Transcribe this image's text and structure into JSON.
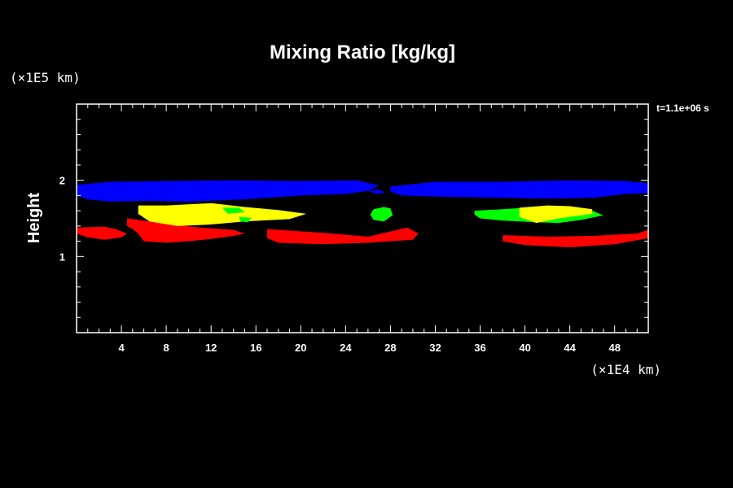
{
  "chart_data": {
    "type": "area",
    "title": "Mixing Ratio [kg/kg]",
    "xlabel": "",
    "ylabel": "Height",
    "x_unit": "(×1E4 km)",
    "y_unit": "(×1E5 km)",
    "time_label": "t=1.1e+06 s",
    "xlim": [
      0,
      51
    ],
    "ylim": [
      0,
      3
    ],
    "x_ticks": [
      4,
      8,
      12,
      16,
      20,
      24,
      28,
      32,
      36,
      40,
      44,
      48
    ],
    "y_ticks": [
      1,
      2
    ],
    "grid": false,
    "colors": {
      "background": "#000000",
      "axes": "#ffffff",
      "blue": "#0000ff",
      "yellow": "#ffff00",
      "green": "#00ff00",
      "red": "#ff0000"
    },
    "regions": [
      {
        "color": "blue",
        "polygon": [
          [
            0,
            1.94
          ],
          [
            3,
            1.98
          ],
          [
            8,
            1.99
          ],
          [
            14,
            2.0
          ],
          [
            20,
            1.99
          ],
          [
            25,
            2.0
          ],
          [
            27,
            1.93
          ],
          [
            26,
            1.86
          ],
          [
            24,
            1.82
          ],
          [
            20,
            1.8
          ],
          [
            15,
            1.75
          ],
          [
            10,
            1.72
          ],
          [
            6,
            1.73
          ],
          [
            3,
            1.72
          ],
          [
            1,
            1.75
          ],
          [
            0,
            1.8
          ]
        ]
      },
      {
        "color": "blue",
        "polygon": [
          [
            26,
            1.86
          ],
          [
            27,
            1.88
          ],
          [
            27.5,
            1.84
          ],
          [
            26.8,
            1.82
          ]
        ]
      },
      {
        "color": "blue",
        "polygon": [
          [
            28,
            1.92
          ],
          [
            32,
            1.98
          ],
          [
            38,
            1.98
          ],
          [
            44,
            2.0
          ],
          [
            49,
            1.99
          ],
          [
            51,
            1.96
          ],
          [
            51,
            1.83
          ],
          [
            49,
            1.82
          ],
          [
            46,
            1.77
          ],
          [
            42,
            1.76
          ],
          [
            38,
            1.77
          ],
          [
            34,
            1.78
          ],
          [
            31,
            1.79
          ],
          [
            29,
            1.8
          ],
          [
            28,
            1.85
          ]
        ]
      },
      {
        "color": "red",
        "polygon": [
          [
            0,
            1.38
          ],
          [
            2.5,
            1.39
          ],
          [
            3.5,
            1.36
          ],
          [
            4.5,
            1.3
          ],
          [
            4,
            1.25
          ],
          [
            2.5,
            1.22
          ],
          [
            1,
            1.25
          ],
          [
            0,
            1.3
          ]
        ]
      },
      {
        "color": "red",
        "polygon": [
          [
            4.5,
            1.5
          ],
          [
            6,
            1.47
          ],
          [
            8,
            1.43
          ],
          [
            11,
            1.38
          ],
          [
            14,
            1.35
          ],
          [
            15,
            1.3
          ],
          [
            14,
            1.27
          ],
          [
            12,
            1.23
          ],
          [
            10,
            1.2
          ],
          [
            8,
            1.18
          ],
          [
            6,
            1.2
          ],
          [
            5.5,
            1.3
          ],
          [
            5,
            1.36
          ],
          [
            4.5,
            1.4
          ]
        ]
      },
      {
        "color": "red",
        "polygon": [
          [
            17,
            1.36
          ],
          [
            19,
            1.34
          ],
          [
            22,
            1.31
          ],
          [
            26,
            1.26
          ],
          [
            29.5,
            1.38
          ],
          [
            30.5,
            1.3
          ],
          [
            30,
            1.22
          ],
          [
            26,
            1.18
          ],
          [
            22,
            1.16
          ],
          [
            18,
            1.18
          ],
          [
            17,
            1.24
          ]
        ]
      },
      {
        "color": "red",
        "polygon": [
          [
            38,
            1.28
          ],
          [
            42,
            1.26
          ],
          [
            46,
            1.27
          ],
          [
            50,
            1.3
          ],
          [
            51,
            1.35
          ],
          [
            51,
            1.24
          ],
          [
            48,
            1.16
          ],
          [
            44,
            1.12
          ],
          [
            40,
            1.15
          ],
          [
            38,
            1.2
          ]
        ]
      },
      {
        "color": "yellow",
        "polygon": [
          [
            5.5,
            1.67
          ],
          [
            8,
            1.67
          ],
          [
            12,
            1.7
          ],
          [
            15,
            1.65
          ],
          [
            18,
            1.61
          ],
          [
            20.5,
            1.56
          ],
          [
            19,
            1.49
          ],
          [
            15,
            1.46
          ],
          [
            12,
            1.42
          ],
          [
            9,
            1.4
          ],
          [
            6.5,
            1.46
          ],
          [
            5.5,
            1.56
          ]
        ]
      },
      {
        "color": "green",
        "polygon": [
          [
            13,
            1.64
          ],
          [
            14.5,
            1.64
          ],
          [
            15,
            1.58
          ],
          [
            13.5,
            1.56
          ]
        ]
      },
      {
        "color": "green",
        "polygon": [
          [
            14.5,
            1.52
          ],
          [
            15.6,
            1.51
          ],
          [
            15.3,
            1.45
          ],
          [
            14.6,
            1.46
          ]
        ]
      },
      {
        "color": "green",
        "polygon": [
          [
            26.5,
            1.62
          ],
          [
            27.4,
            1.65
          ],
          [
            28,
            1.63
          ],
          [
            28.2,
            1.54
          ],
          [
            27.4,
            1.46
          ],
          [
            26.5,
            1.48
          ],
          [
            26.2,
            1.55
          ]
        ]
      },
      {
        "color": "green",
        "polygon": [
          [
            35.5,
            1.6
          ],
          [
            38,
            1.62
          ],
          [
            40,
            1.64
          ],
          [
            43,
            1.62
          ],
          [
            46,
            1.6
          ],
          [
            47,
            1.54
          ],
          [
            45,
            1.48
          ],
          [
            43,
            1.44
          ],
          [
            41,
            1.45
          ],
          [
            38,
            1.47
          ],
          [
            36,
            1.5
          ],
          [
            35.5,
            1.55
          ]
        ]
      },
      {
        "color": "yellow",
        "polygon": [
          [
            39.5,
            1.64
          ],
          [
            42,
            1.67
          ],
          [
            44,
            1.66
          ],
          [
            46,
            1.62
          ],
          [
            46,
            1.56
          ],
          [
            43,
            1.5
          ],
          [
            41,
            1.44
          ],
          [
            39.5,
            1.52
          ]
        ]
      }
    ]
  }
}
